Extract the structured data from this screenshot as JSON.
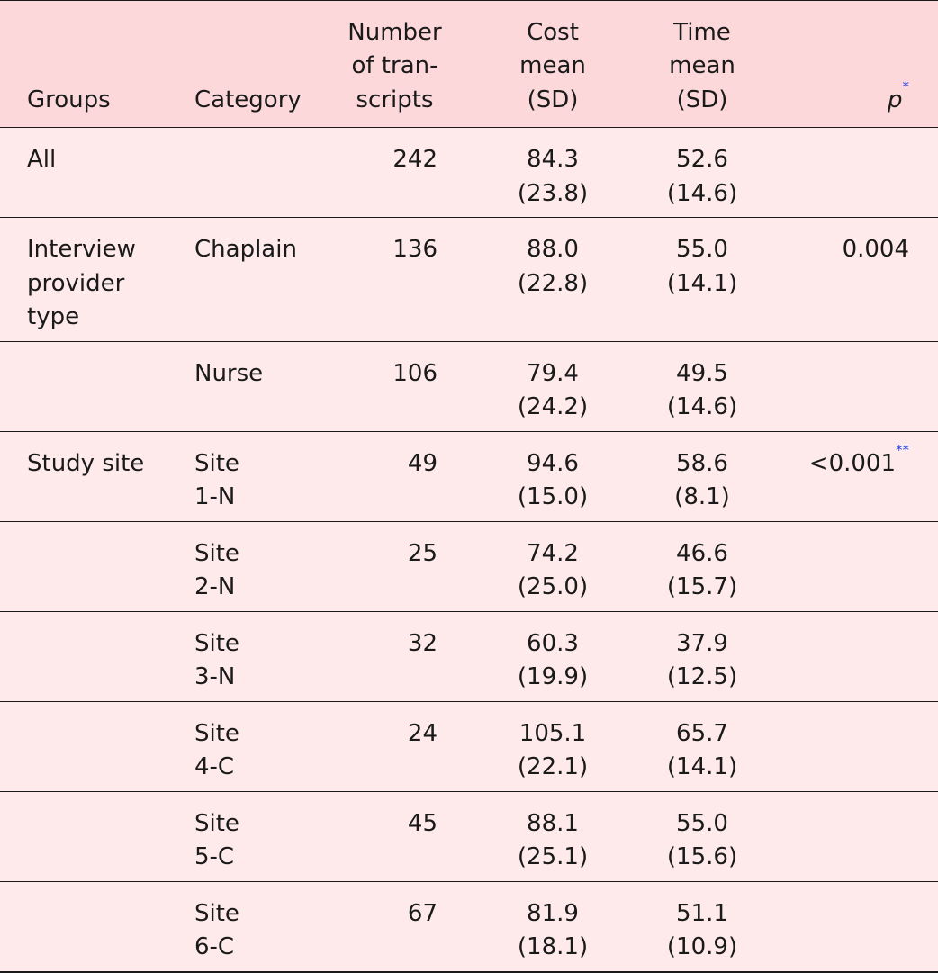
{
  "headers": {
    "groups": "Groups",
    "category": "Category",
    "transcripts": [
      "Number",
      "of tran-",
      "scripts"
    ],
    "cost": [
      "Cost",
      "mean",
      "(SD)"
    ],
    "time": [
      "Time",
      "mean",
      "(SD)"
    ],
    "p": "p",
    "p_note": "*"
  },
  "rows": [
    {
      "group": [
        "All"
      ],
      "category": [],
      "n": "242",
      "cost": [
        "84.3",
        "(23.8)"
      ],
      "time": [
        "52.6",
        "(14.6)"
      ],
      "p": "",
      "p_note": ""
    },
    {
      "group": [
        "Interview",
        "provider",
        "type"
      ],
      "category": [
        "Chaplain"
      ],
      "n": "136",
      "cost": [
        "88.0",
        "(22.8)"
      ],
      "time": [
        "55.0",
        "(14.1)"
      ],
      "p": "0.004",
      "p_note": ""
    },
    {
      "group": [],
      "category": [
        "Nurse"
      ],
      "n": "106",
      "cost": [
        "79.4",
        "(24.2)"
      ],
      "time": [
        "49.5",
        "(14.6)"
      ],
      "p": "",
      "p_note": ""
    },
    {
      "group": [
        "Study site"
      ],
      "category": [
        "Site",
        "1-N"
      ],
      "n": "49",
      "cost": [
        "94.6",
        "(15.0)"
      ],
      "time": [
        "58.6",
        "(8.1)"
      ],
      "p": "<0.001",
      "p_note": "**"
    },
    {
      "group": [],
      "category": [
        "Site",
        "2-N"
      ],
      "n": "25",
      "cost": [
        "74.2",
        "(25.0)"
      ],
      "time": [
        "46.6",
        "(15.7)"
      ],
      "p": "",
      "p_note": ""
    },
    {
      "group": [],
      "category": [
        "Site",
        "3-N"
      ],
      "n": "32",
      "cost": [
        "60.3",
        "(19.9)"
      ],
      "time": [
        "37.9",
        "(12.5)"
      ],
      "p": "",
      "p_note": ""
    },
    {
      "group": [],
      "category": [
        "Site",
        "4-C"
      ],
      "n": "24",
      "cost": [
        "105.1",
        "(22.1)"
      ],
      "time": [
        "65.7",
        "(14.1)"
      ],
      "p": "",
      "p_note": ""
    },
    {
      "group": [],
      "category": [
        "Site",
        "5-C"
      ],
      "n": "45",
      "cost": [
        "88.1",
        "(25.1)"
      ],
      "time": [
        "55.0",
        "(15.6)"
      ],
      "p": "",
      "p_note": ""
    },
    {
      "group": [],
      "category": [
        "Site",
        "6-C"
      ],
      "n": "67",
      "cost": [
        "81.9",
        "(18.1)"
      ],
      "time": [
        "51.1",
        "(10.9)"
      ],
      "p": "",
      "p_note": ""
    }
  ]
}
